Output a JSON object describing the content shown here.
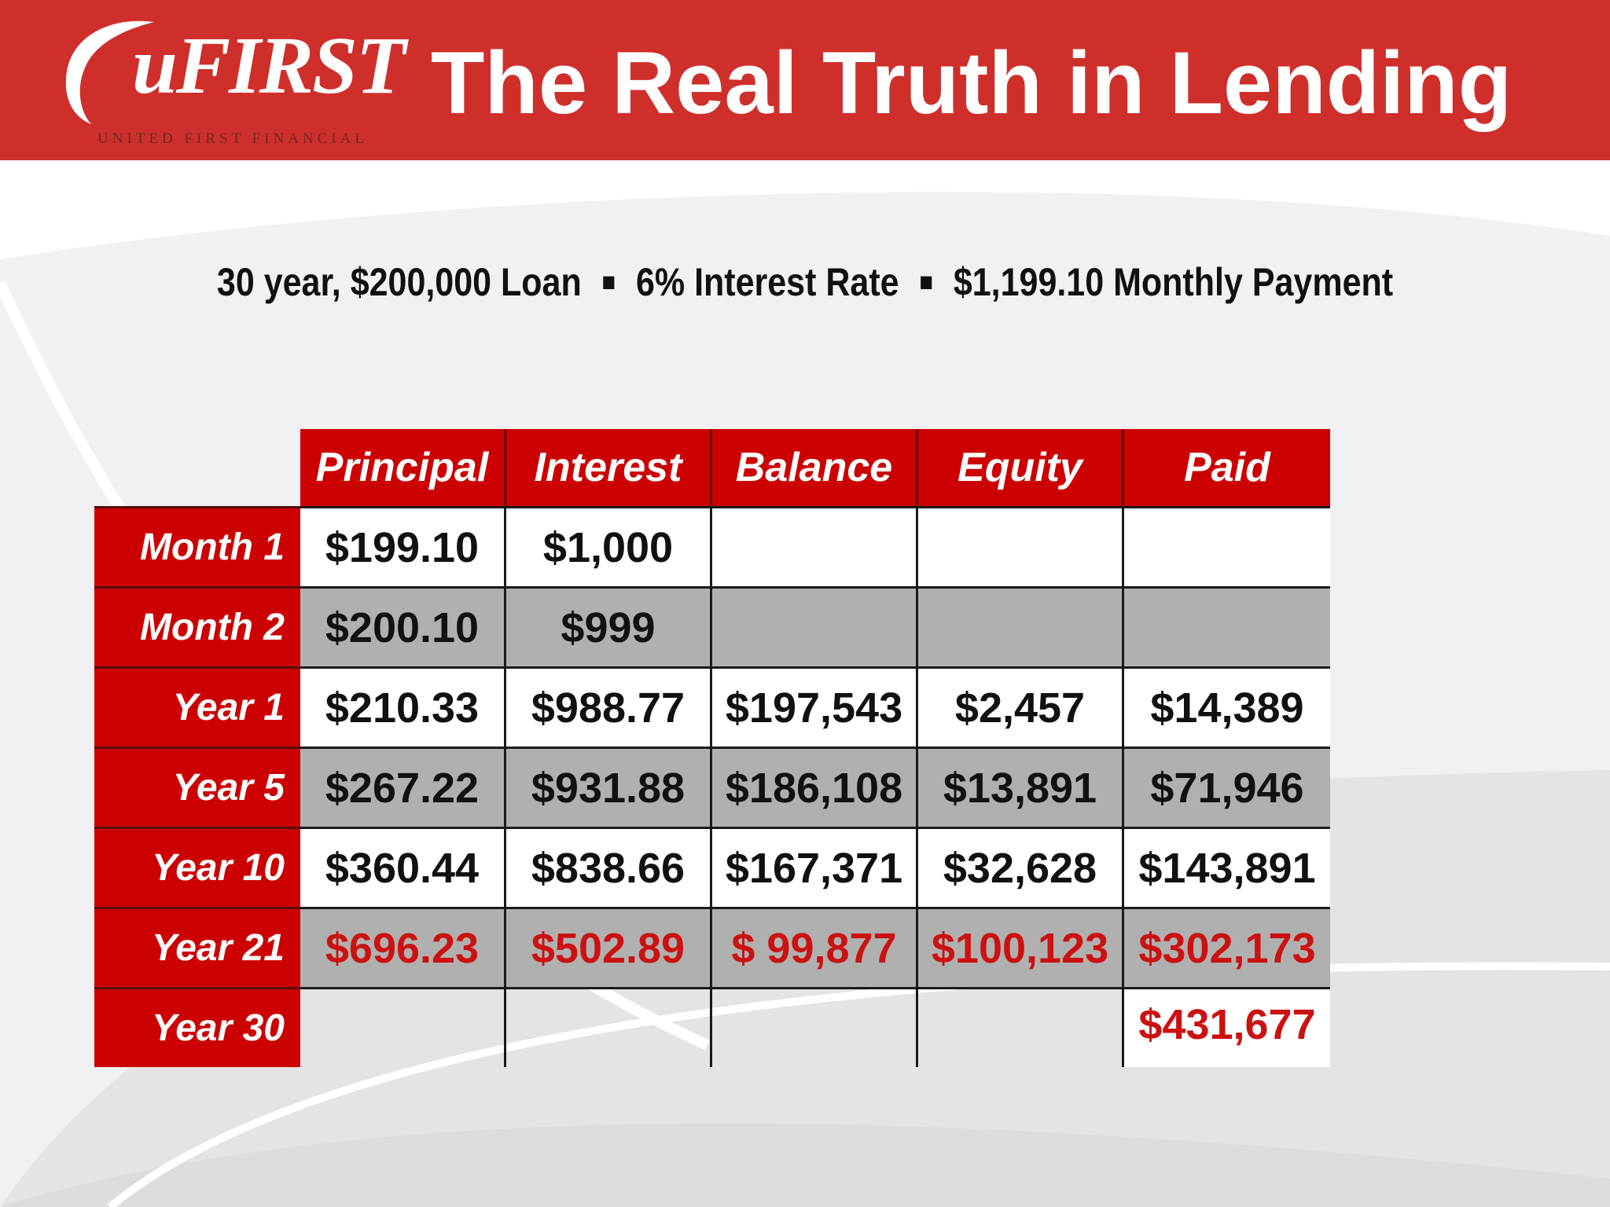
{
  "header": {
    "logo_text": "uFIRST",
    "logo_subtext": "UNITED FIRST FINANCIAL",
    "title": "The Real Truth in Lending"
  },
  "subtitle": {
    "part1": "30 year, $200,000 Loan",
    "part2": "6% Interest Rate",
    "part3": "$1,199.10 Monthly Payment",
    "separator": "■"
  },
  "table": {
    "columns": [
      "Principal",
      "Interest",
      "Balance",
      "Equity",
      "Paid"
    ],
    "rows": [
      {
        "label": "Month 1",
        "cells": [
          "$199.10",
          "$1,000",
          "",
          "",
          ""
        ]
      },
      {
        "label": "Month 2",
        "cells": [
          "$200.10",
          "$999",
          "",
          "",
          ""
        ]
      },
      {
        "label": "Year 1",
        "cells": [
          "$210.33",
          "$988.77",
          "$197,543",
          "$2,457",
          "$14,389"
        ]
      },
      {
        "label": "Year 5",
        "cells": [
          "$267.22",
          "$931.88",
          "$186,108",
          "$13,891",
          "$71,946"
        ]
      },
      {
        "label": "Year 10",
        "cells": [
          "$360.44",
          "$838.66",
          "$167,371",
          "$32,628",
          "$143,891"
        ]
      },
      {
        "label": "Year 21",
        "cells": [
          "$696.23",
          "$502.89",
          "$ 99,877",
          "$100,123",
          "$302,173"
        ]
      },
      {
        "label": "Year 30",
        "cells": [
          "",
          "",
          "",
          "",
          "$431,677"
        ]
      }
    ]
  },
  "colors": {
    "header_red": "#cf2f2b",
    "table_red": "#cc0000",
    "highlight_text": "#cc1111",
    "gray_row": "#b0b0b0"
  }
}
